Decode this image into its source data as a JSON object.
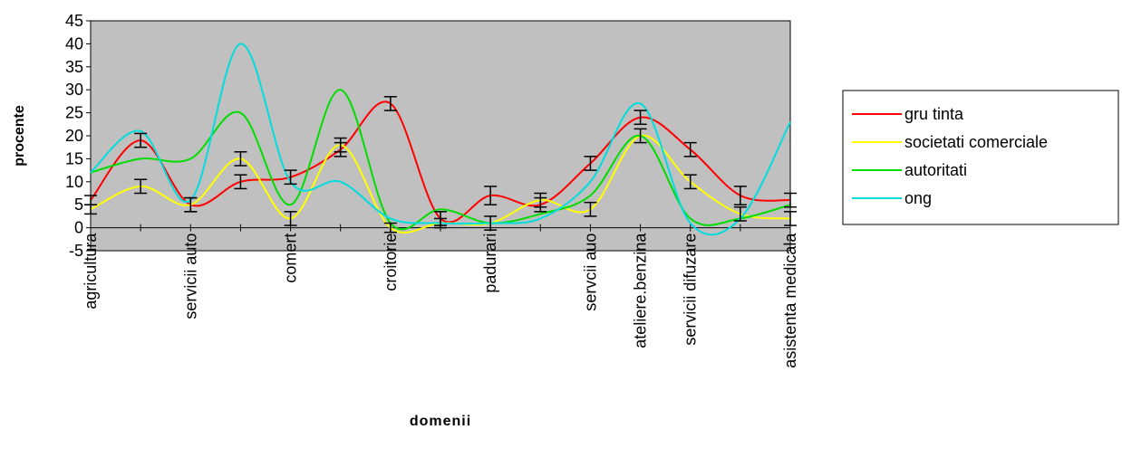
{
  "chart_data": {
    "type": "line",
    "title": "",
    "xlabel": "domenii",
    "ylabel": "procente",
    "ylim": [
      -5,
      45
    ],
    "y_ticks": [
      45,
      40,
      35,
      30,
      25,
      20,
      15,
      10,
      5,
      0,
      -5
    ],
    "x_tick_labels": [
      "agricultura",
      "servicii auto",
      "comert",
      "croitorie",
      "padurari",
      "servcii auo",
      "ateliere.benzina",
      "servicii difuzare",
      "asistenta medicala"
    ],
    "x_label_positions": [
      0,
      2,
      4,
      6,
      8,
      10,
      11,
      12,
      14
    ],
    "x_count": 15,
    "plot_background": "#c0c0c0",
    "smoothed": true,
    "error_bars": true,
    "legend_position": "right",
    "series": [
      {
        "name": "gru tinta",
        "color": "#ff0000",
        "values": [
          6,
          19,
          5,
          10,
          11,
          17,
          27,
          2,
          7,
          5,
          14,
          24,
          17,
          7,
          6
        ],
        "errors": [
          1,
          1.5,
          1.5,
          1.5,
          1.5,
          1.5,
          1.5,
          1.5,
          2,
          1.5,
          1.5,
          1.5,
          1.5,
          2,
          1.5
        ]
      },
      {
        "name": "societati comerciale",
        "color": "#ffff00",
        "values": [
          4,
          9,
          5,
          15,
          2,
          18,
          0,
          1,
          1,
          6,
          4,
          20,
          10,
          3,
          2
        ],
        "errors": [
          1,
          1.5,
          1.5,
          1.5,
          1.5,
          1.5,
          1,
          1,
          1.5,
          1.5,
          1.5,
          1.5,
          1.5,
          1.5,
          1.5
        ]
      },
      {
        "name": "autoritati",
        "color": "#00dd00",
        "values": [
          12,
          15,
          15,
          25,
          5,
          30,
          1,
          4,
          1,
          3,
          7,
          20,
          2,
          2,
          5
        ],
        "errors": [
          0,
          0,
          0,
          0,
          0,
          0,
          0,
          0,
          0,
          0,
          0,
          0,
          0,
          0,
          0
        ]
      },
      {
        "name": "ong",
        "color": "#00dddd",
        "values": [
          12,
          21,
          6,
          40,
          10,
          10,
          2,
          1,
          1,
          2,
          10,
          27,
          1,
          2,
          23
        ],
        "errors": [
          0,
          0,
          0,
          0,
          0,
          0,
          0,
          0,
          0,
          0,
          0,
          0,
          0,
          0,
          0
        ]
      }
    ]
  }
}
